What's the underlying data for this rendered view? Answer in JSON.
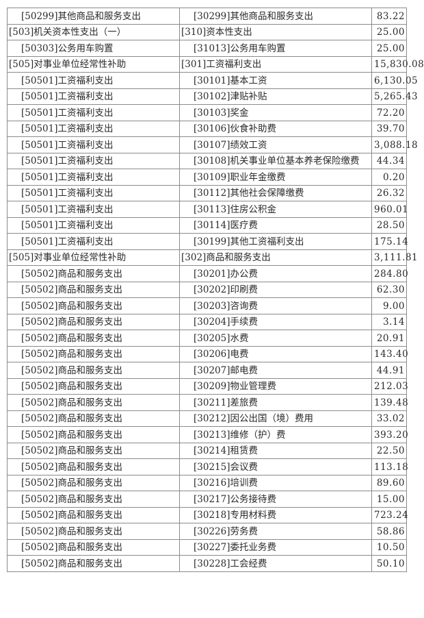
{
  "table": {
    "rows": [
      {
        "func": "[50299]其他商品和服务支出",
        "func_level": "sub",
        "econ": "[30299]其他商品和服务支出",
        "econ_level": "sub",
        "amount": "83.22"
      },
      {
        "func": "[503]机关资本性支出（一）",
        "func_level": "top",
        "econ": "[310]资本性支出",
        "econ_level": "top",
        "amount": "25.00"
      },
      {
        "func": "[50303]公务用车购置",
        "func_level": "sub",
        "econ": "[31013]公务用车购置",
        "econ_level": "sub",
        "amount": "25.00"
      },
      {
        "func": "[505]对事业单位经常性补助",
        "func_level": "top",
        "econ": "[301]工资福利支出",
        "econ_level": "top",
        "amount": "15,830.08"
      },
      {
        "func": "[50501]工资福利支出",
        "func_level": "sub",
        "econ": "[30101]基本工资",
        "econ_level": "sub",
        "amount": "6,130.05"
      },
      {
        "func": "[50501]工资福利支出",
        "func_level": "sub",
        "econ": "[30102]津贴补贴",
        "econ_level": "sub",
        "amount": "5,265.43"
      },
      {
        "func": "[50501]工资福利支出",
        "func_level": "sub",
        "econ": "[30103]奖金",
        "econ_level": "sub",
        "amount": "72.20"
      },
      {
        "func": "[50501]工资福利支出",
        "func_level": "sub",
        "econ": "[30106]伙食补助费",
        "econ_level": "sub",
        "amount": "39.70"
      },
      {
        "func": "[50501]工资福利支出",
        "func_level": "sub",
        "econ": "[30107]绩效工资",
        "econ_level": "sub",
        "amount": "3,088.18"
      },
      {
        "func": "[50501]工资福利支出",
        "func_level": "sub",
        "econ": "[30108]机关事业单位基本养老保险缴费",
        "econ_level": "wrap",
        "amount": "44.34"
      },
      {
        "func": "[50501]工资福利支出",
        "func_level": "sub",
        "econ": "[30109]职业年金缴费",
        "econ_level": "sub",
        "amount": "0.20"
      },
      {
        "func": "[50501]工资福利支出",
        "func_level": "sub",
        "econ": "[30112]其他社会保障缴费",
        "econ_level": "sub",
        "amount": "26.32"
      },
      {
        "func": "[50501]工资福利支出",
        "func_level": "sub",
        "econ": "[30113]住房公积金",
        "econ_level": "sub",
        "amount": "960.01"
      },
      {
        "func": "[50501]工资福利支出",
        "func_level": "sub",
        "econ": "[30114]医疗费",
        "econ_level": "sub",
        "amount": "28.50"
      },
      {
        "func": "[50501]工资福利支出",
        "func_level": "sub",
        "econ": "[30199]其他工资福利支出",
        "econ_level": "sub",
        "amount": "175.14"
      },
      {
        "func": "[505]对事业单位经常性补助",
        "func_level": "top",
        "econ": "[302]商品和服务支出",
        "econ_level": "top",
        "amount": "3,111.81"
      },
      {
        "func": "[50502]商品和服务支出",
        "func_level": "sub",
        "econ": "[30201]办公费",
        "econ_level": "sub",
        "amount": "284.80"
      },
      {
        "func": "[50502]商品和服务支出",
        "func_level": "sub",
        "econ": "[30202]印刷费",
        "econ_level": "sub",
        "amount": "62.30"
      },
      {
        "func": "[50502]商品和服务支出",
        "func_level": "sub",
        "econ": "[30203]咨询费",
        "econ_level": "sub",
        "amount": "9.00"
      },
      {
        "func": "[50502]商品和服务支出",
        "func_level": "sub",
        "econ": "[30204]手续费",
        "econ_level": "sub",
        "amount": "3.14"
      },
      {
        "func": "[50502]商品和服务支出",
        "func_level": "sub",
        "econ": "[30205]水费",
        "econ_level": "sub",
        "amount": "20.91"
      },
      {
        "func": "[50502]商品和服务支出",
        "func_level": "sub",
        "econ": "[30206]电费",
        "econ_level": "sub",
        "amount": "143.40"
      },
      {
        "func": "[50502]商品和服务支出",
        "func_level": "sub",
        "econ": "[30207]邮电费",
        "econ_level": "sub",
        "amount": "44.91"
      },
      {
        "func": "[50502]商品和服务支出",
        "func_level": "sub",
        "econ": "[30209]物业管理费",
        "econ_level": "sub",
        "amount": "212.03"
      },
      {
        "func": "[50502]商品和服务支出",
        "func_level": "sub",
        "econ": "[30211]差旅费",
        "econ_level": "sub",
        "amount": "139.48"
      },
      {
        "func": "[50502]商品和服务支出",
        "func_level": "sub",
        "econ": "[30212]因公出国（境）费用",
        "econ_level": "sub",
        "amount": "33.02"
      },
      {
        "func": "[50502]商品和服务支出",
        "func_level": "sub",
        "econ": "[30213]维修（护）费",
        "econ_level": "sub",
        "amount": "393.20"
      },
      {
        "func": "[50502]商品和服务支出",
        "func_level": "sub",
        "econ": "[30214]租赁费",
        "econ_level": "sub",
        "amount": "22.50"
      },
      {
        "func": "[50502]商品和服务支出",
        "func_level": "sub",
        "econ": "[30215]会议费",
        "econ_level": "sub",
        "amount": "113.18"
      },
      {
        "func": "[50502]商品和服务支出",
        "func_level": "sub",
        "econ": "[30216]培训费",
        "econ_level": "sub",
        "amount": "89.60"
      },
      {
        "func": "[50502]商品和服务支出",
        "func_level": "sub",
        "econ": "[30217]公务接待费",
        "econ_level": "sub",
        "amount": "15.00"
      },
      {
        "func": "[50502]商品和服务支出",
        "func_level": "sub",
        "econ": "[30218]专用材料费",
        "econ_level": "sub",
        "amount": "723.24"
      },
      {
        "func": "[50502]商品和服务支出",
        "func_level": "sub",
        "econ": "[30226]劳务费",
        "econ_level": "sub",
        "amount": "58.86"
      },
      {
        "func": "[50502]商品和服务支出",
        "func_level": "sub",
        "econ": "[30227]委托业务费",
        "econ_level": "sub",
        "amount": "10.50"
      },
      {
        "func": "[50502]商品和服务支出",
        "func_level": "sub",
        "econ": "[30228]工会经费",
        "econ_level": "sub",
        "amount": "50.10"
      }
    ]
  }
}
